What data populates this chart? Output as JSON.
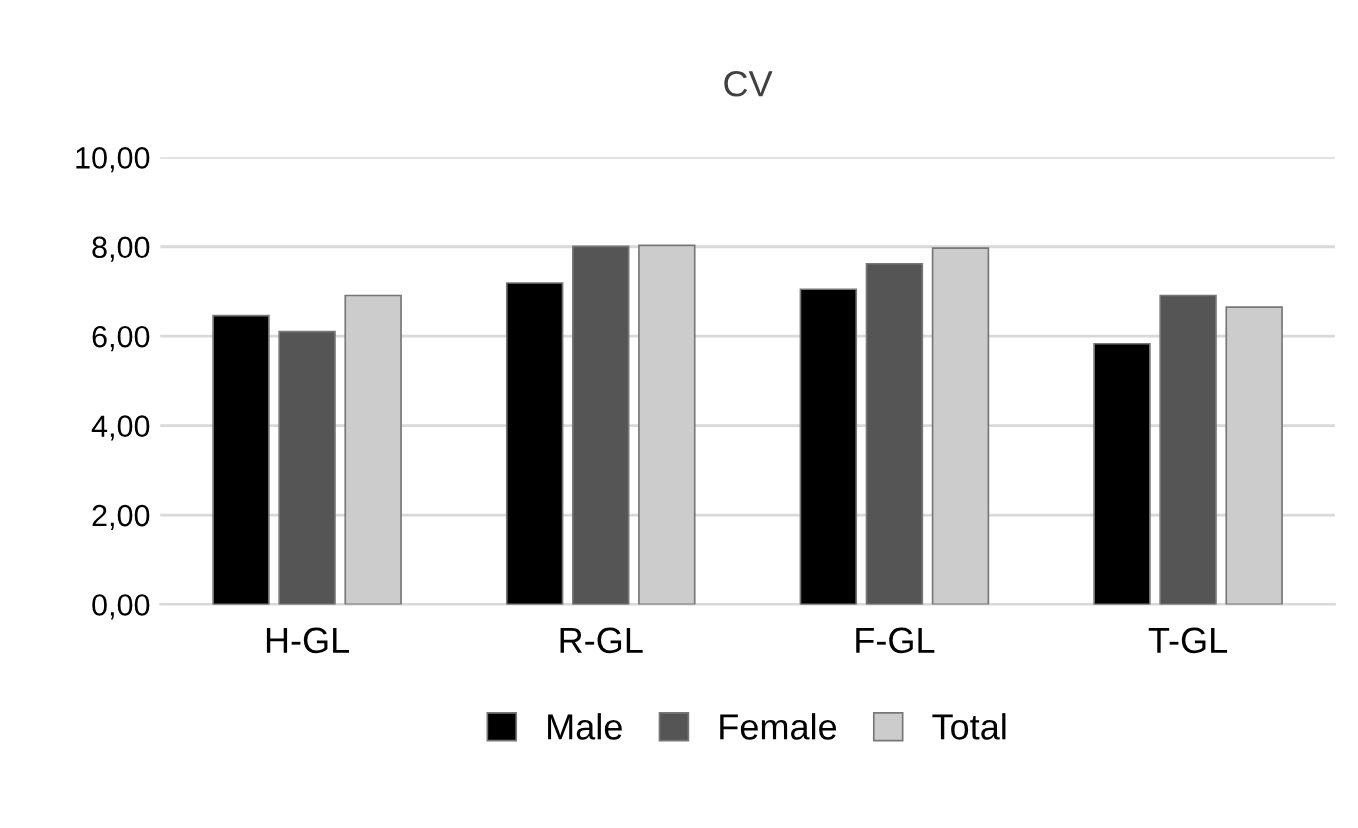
{
  "chart_data": {
    "type": "bar",
    "title": "CV",
    "categories": [
      "H-GL",
      "R-GL",
      "F-GL",
      "T-GL"
    ],
    "series": [
      {
        "name": "Male",
        "color": "#000000",
        "values": [
          6.46,
          7.19,
          7.05,
          5.83
        ]
      },
      {
        "name": "Female",
        "color": "#555555",
        "values": [
          6.1,
          8.01,
          7.62,
          6.91
        ]
      },
      {
        "name": "Total",
        "color": "#cccccc",
        "values": [
          6.91,
          8.03,
          7.97,
          6.65
        ]
      }
    ],
    "ylim": [
      0,
      10
    ],
    "yticks": [
      {
        "value": 0,
        "label": "0,00"
      },
      {
        "value": 2,
        "label": "2,00"
      },
      {
        "value": 4,
        "label": "4,00"
      },
      {
        "value": 6,
        "label": "6,00"
      },
      {
        "value": 8,
        "label": "8,00"
      },
      {
        "value": 10,
        "label": "10,00"
      }
    ],
    "grid": "y",
    "legend": "bottom"
  }
}
